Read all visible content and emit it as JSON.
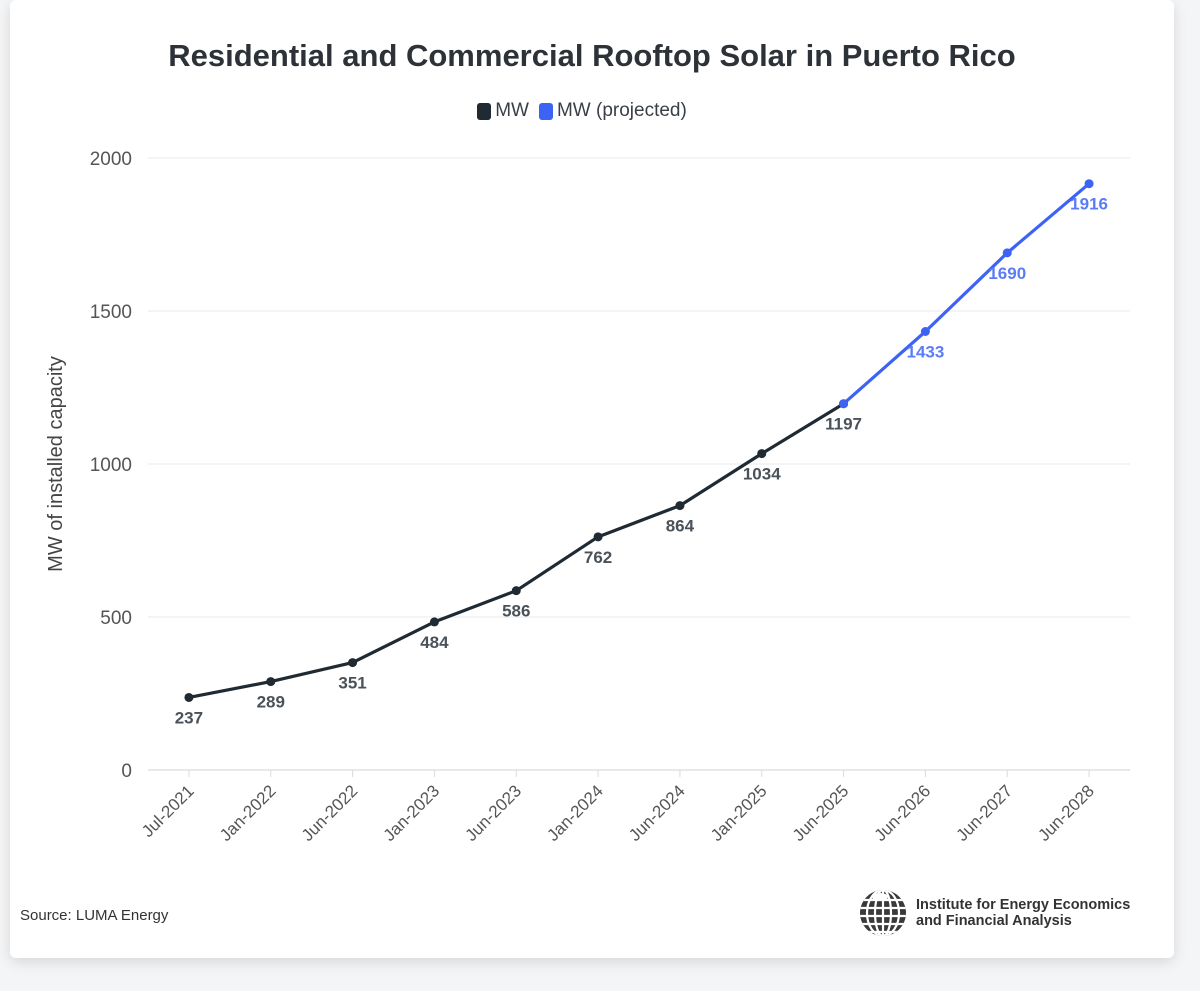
{
  "chart_data": {
    "type": "line",
    "title": "Residential and Commercial Rooftop Solar in Puerto Rico",
    "ylabel": "MW of installed capacity",
    "xlabel": "",
    "ylim": [
      0,
      2000
    ],
    "yticks": [
      0,
      500,
      1000,
      1500,
      2000
    ],
    "grid": true,
    "legend_placement": "top-center",
    "categories": [
      "Jul-2021",
      "Jan-2022",
      "Jun-2022",
      "Jan-2023",
      "Jun-2023",
      "Jan-2024",
      "Jun-2024",
      "Jan-2025",
      "Jun-2025",
      "Jun-2026",
      "Jun-2027",
      "Jun-2028"
    ],
    "series": [
      {
        "name": "MW",
        "color": "#1f2a33",
        "values": [
          237,
          289,
          351,
          484,
          586,
          762,
          864,
          1034,
          1197,
          null,
          null,
          null
        ]
      },
      {
        "name": "MW (projected)",
        "color": "#3d63f5",
        "values": [
          null,
          null,
          null,
          null,
          null,
          null,
          null,
          null,
          1197,
          1433,
          1690,
          1916
        ]
      }
    ]
  },
  "source": "Source: LUMA Energy",
  "logo": {
    "line1": "Institute for Energy Economics",
    "line2": "and Financial Analysis"
  }
}
